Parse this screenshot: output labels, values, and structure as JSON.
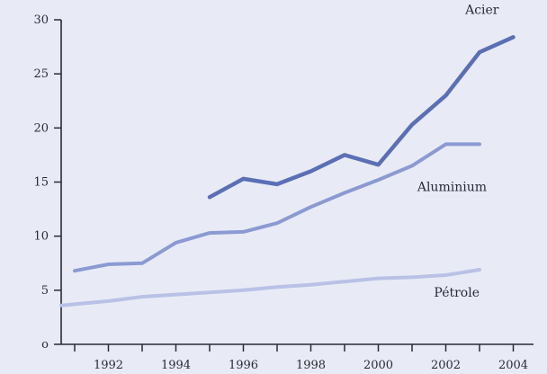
{
  "chart_data": {
    "type": "line",
    "title": "",
    "xlabel": "",
    "ylabel": "",
    "xlim": [
      1990.6,
      2004.6
    ],
    "ylim": [
      0,
      30
    ],
    "x_ticks": [
      1991,
      1992,
      1993,
      1994,
      1995,
      1996,
      1997,
      1998,
      1999,
      2000,
      2001,
      2002,
      2003,
      2004
    ],
    "x_tick_labels": [
      {
        "x": 1992,
        "label": "1992"
      },
      {
        "x": 1994,
        "label": "1994"
      },
      {
        "x": 1996,
        "label": "1996"
      },
      {
        "x": 1998,
        "label": "1998"
      },
      {
        "x": 2000,
        "label": "2000"
      },
      {
        "x": 2002,
        "label": "2002"
      },
      {
        "x": 2004,
        "label": "2004"
      }
    ],
    "y_ticks": [
      0,
      5,
      10,
      15,
      20,
      25,
      30
    ],
    "y_tick_labels": [
      "o",
      "5",
      "10",
      "15",
      "20",
      "25",
      "30"
    ],
    "grid": false,
    "series": [
      {
        "name": "Acier",
        "color": "#5b6fb5",
        "x": [
          1995,
          1996,
          1997,
          1998,
          1999,
          2000,
          2001,
          2002,
          2003,
          2004
        ],
        "y": [
          13.6,
          15.3,
          14.8,
          16.0,
          17.5,
          16.6,
          20.3,
          23.0,
          27.0,
          28.4
        ]
      },
      {
        "name": "Aluminium",
        "color": "#8b9ad2",
        "x": [
          1991,
          1992,
          1993,
          1994,
          1995,
          1996,
          1997,
          1998,
          1999,
          2000,
          2001,
          2002,
          2003
        ],
        "y": [
          6.8,
          7.4,
          7.5,
          9.4,
          10.3,
          10.4,
          11.2,
          12.7,
          14.0,
          15.2,
          16.5,
          18.5,
          18.5
        ]
      },
      {
        "name": "Pétrole",
        "color": "#b9c1e6",
        "x": [
          1990.6,
          1992,
          1993,
          1994,
          1995,
          1996,
          1997,
          1998,
          1999,
          2000,
          2001,
          2002,
          2003
        ],
        "y": [
          3.6,
          4.0,
          4.4,
          4.6,
          4.8,
          5.0,
          5.3,
          5.5,
          5.8,
          6.1,
          6.2,
          6.4,
          6.9
        ]
      }
    ]
  }
}
